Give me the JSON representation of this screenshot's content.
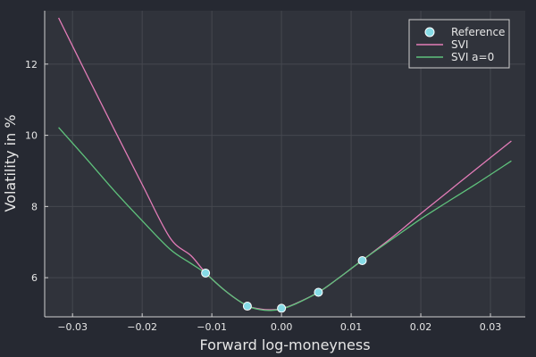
{
  "chart_data": {
    "type": "line",
    "title": "",
    "xlabel": "Forward log-moneyness",
    "ylabel": "Volatility in %",
    "xlim": [
      -0.034,
      0.035
    ],
    "ylim": [
      4.9,
      13.5
    ],
    "xticks": [
      -0.03,
      -0.02,
      -0.01,
      0.0,
      0.01,
      0.02,
      0.03
    ],
    "xtick_labels": [
      "−0.03",
      "−0.02",
      "−0.01",
      "0.00",
      "0.01",
      "0.02",
      "0.03"
    ],
    "yticks": [
      6,
      8,
      10,
      12
    ],
    "ytick_labels": [
      "6",
      "8",
      "10",
      "12"
    ],
    "grid": true,
    "legend_position": "top-right",
    "series": [
      {
        "name": "Reference",
        "type": "scatter",
        "color": "#86dbe6",
        "x": [
          -0.0109,
          -0.0049,
          0.0,
          0.0053,
          0.0116
        ],
        "y": [
          6.13,
          5.2,
          5.14,
          5.59,
          6.48
        ]
      },
      {
        "name": "SVI",
        "type": "line",
        "color": "#e37cb8",
        "x": [
          -0.032,
          -0.028,
          -0.024,
          -0.02,
          -0.016,
          -0.013,
          -0.0109,
          -0.008,
          -0.005,
          -0.003,
          -0.0015,
          0.0,
          0.002,
          0.0053,
          0.008,
          0.0116,
          0.016,
          0.02,
          0.024,
          0.028,
          0.033
        ],
        "y": [
          13.3,
          11.72,
          10.16,
          8.62,
          7.12,
          6.62,
          6.14,
          5.62,
          5.22,
          5.12,
          5.1,
          5.13,
          5.27,
          5.59,
          5.96,
          6.49,
          7.15,
          7.8,
          8.43,
          9.06,
          9.84
        ]
      },
      {
        "name": "SVI a=0",
        "type": "line",
        "color": "#5fc27c",
        "x": [
          -0.032,
          -0.028,
          -0.024,
          -0.02,
          -0.016,
          -0.013,
          -0.0109,
          -0.008,
          -0.005,
          -0.003,
          -0.0015,
          0.0,
          0.002,
          0.0053,
          0.008,
          0.0116,
          0.016,
          0.02,
          0.024,
          0.028,
          0.033
        ],
        "y": [
          10.22,
          9.34,
          8.44,
          7.6,
          6.8,
          6.4,
          6.12,
          5.62,
          5.22,
          5.1,
          5.08,
          5.12,
          5.26,
          5.59,
          5.96,
          6.49,
          7.1,
          7.65,
          8.15,
          8.64,
          9.28
        ]
      }
    ]
  }
}
